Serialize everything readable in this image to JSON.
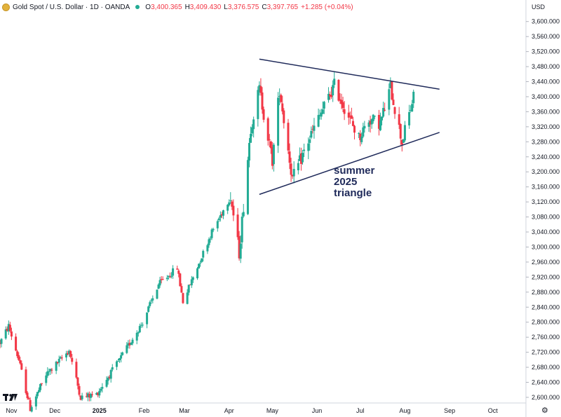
{
  "header": {
    "title": "Gold Spot / U.S. Dollar · 1D · OANDA",
    "open_label": "O",
    "open": "3,400.365",
    "high_label": "H",
    "high": "3,409.430",
    "low_label": "L",
    "low": "3,376.575",
    "close_label": "C",
    "close": "3,397.765",
    "change": "+1.285 (+0.04%)",
    "status_color": "#22ab94"
  },
  "currency": "USD",
  "icons": {
    "logo": "gold-coin-icon",
    "tradingview": "tradingview-logo-icon",
    "settings": "gear-icon"
  },
  "colors": {
    "up": "#22ab94",
    "down": "#f23645",
    "trendline": "#1f2a5a",
    "annotation": "#1f2a5a"
  },
  "chart_data": {
    "type": "candlestick",
    "title": "Gold Spot / U.S. Dollar · 1D · OANDA",
    "y_ticks": [
      "2,600.000",
      "2,640.000",
      "2,680.000",
      "2,720.000",
      "2,760.000",
      "2,800.000",
      "2,840.000",
      "2,880.000",
      "2,920.000",
      "2,960.000",
      "3,000.000",
      "3,040.000",
      "3,080.000",
      "3,120.000",
      "3,160.000",
      "3,200.000",
      "3,240.000",
      "3,280.000",
      "3,320.000",
      "3,360.000",
      "3,400.000",
      "3,440.000",
      "3,480.000",
      "3,520.000",
      "3,560.000",
      "3,600.000"
    ],
    "ylim": [
      2585,
      3620
    ],
    "x_labels": [
      {
        "label": "Nov",
        "date": "2024-11-01",
        "bold": false
      },
      {
        "label": "Dec",
        "date": "2024-12-01",
        "bold": false
      },
      {
        "label": "2025",
        "date": "2025-01-01",
        "bold": true
      },
      {
        "label": "Feb",
        "date": "2025-02-01",
        "bold": false
      },
      {
        "label": "Mar",
        "date": "2025-03-01",
        "bold": false
      },
      {
        "label": "Apr",
        "date": "2025-04-01",
        "bold": false
      },
      {
        "label": "May",
        "date": "2025-05-01",
        "bold": false
      },
      {
        "label": "Jun",
        "date": "2025-06-01",
        "bold": false
      },
      {
        "label": "Jul",
        "date": "2025-07-01",
        "bold": false
      },
      {
        "label": "Aug",
        "date": "2025-08-01",
        "bold": false
      },
      {
        "label": "Sep",
        "date": "2025-09-01",
        "bold": false
      },
      {
        "label": "Oct",
        "date": "2025-10-01",
        "bold": false
      }
    ],
    "anchors": [
      {
        "date": "2024-10-24",
        "price": 2745
      },
      {
        "date": "2024-10-30",
        "price": 2790
      },
      {
        "date": "2024-11-06",
        "price": 2700
      },
      {
        "date": "2024-11-14",
        "price": 2570
      },
      {
        "date": "2024-11-25",
        "price": 2660
      },
      {
        "date": "2024-12-11",
        "price": 2725
      },
      {
        "date": "2024-12-19",
        "price": 2600
      },
      {
        "date": "2024-12-30",
        "price": 2608
      },
      {
        "date": "2025-01-15",
        "price": 2700
      },
      {
        "date": "2025-01-31",
        "price": 2800
      },
      {
        "date": "2025-02-11",
        "price": 2900
      },
      {
        "date": "2025-02-24",
        "price": 2945
      },
      {
        "date": "2025-02-28",
        "price": 2855
      },
      {
        "date": "2025-03-20",
        "price": 3040
      },
      {
        "date": "2025-04-02",
        "price": 3135
      },
      {
        "date": "2025-04-08",
        "price": 2985
      },
      {
        "date": "2025-04-16",
        "price": 3320
      },
      {
        "date": "2025-04-22",
        "price": 3420
      },
      {
        "date": "2025-05-01",
        "price": 3230
      },
      {
        "date": "2025-05-06",
        "price": 3420
      },
      {
        "date": "2025-05-15",
        "price": 3180
      },
      {
        "date": "2025-05-28",
        "price": 3300
      },
      {
        "date": "2025-06-13",
        "price": 3430
      },
      {
        "date": "2025-06-30",
        "price": 3290
      },
      {
        "date": "2025-07-07",
        "price": 3340
      },
      {
        "date": "2025-07-15",
        "price": 3330
      },
      {
        "date": "2025-07-22",
        "price": 3425
      },
      {
        "date": "2025-07-30",
        "price": 3280
      },
      {
        "date": "2025-08-07",
        "price": 3398
      }
    ],
    "trendlines": [
      {
        "start": {
          "date": "2025-04-22",
          "price": 3500
        },
        "end": {
          "date": "2025-08-25",
          "price": 3420
        }
      },
      {
        "start": {
          "date": "2025-04-22",
          "price": 3140
        },
        "end": {
          "date": "2025-08-25",
          "price": 3305
        }
      }
    ],
    "annotation": [
      "summer",
      "2025",
      "triangle"
    ]
  }
}
